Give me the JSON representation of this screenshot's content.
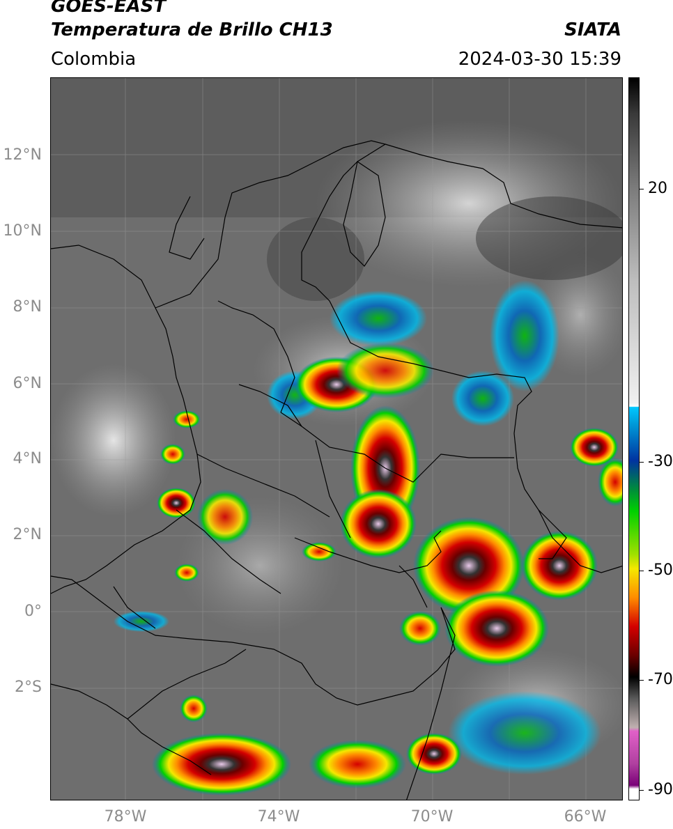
{
  "header": {
    "satellite": "GOES-EAST",
    "product": "Temperatura de Brillo CH13",
    "region": "Colombia",
    "agency": "SIATA",
    "datetime": "2024-03-30 15:39"
  },
  "axes": {
    "lat_labels": [
      "12°N",
      "10°N",
      "8°N",
      "6°N",
      "4°N",
      "2°N",
      "0°",
      "2°S"
    ],
    "lon_labels": [
      "78°W",
      "74°W",
      "70°W",
      "66°W"
    ]
  },
  "colorbar": {
    "tick_labels": [
      "20",
      "-30",
      "-50",
      "-70",
      "-90"
    ],
    "tick_values": [
      20,
      -30,
      -50,
      -70,
      -90
    ],
    "colors": {
      "warm_gray": "#7a7a7a",
      "cyan": "#00c8ff",
      "blue": "#0033a0",
      "green": "#00d000",
      "yellow": "#f5e800",
      "orange": "#ff8c00",
      "red": "#d40000",
      "dark_red": "#6a0000",
      "black": "#000000",
      "pink": "#e060c8",
      "purple": "#7a0078"
    }
  }
}
